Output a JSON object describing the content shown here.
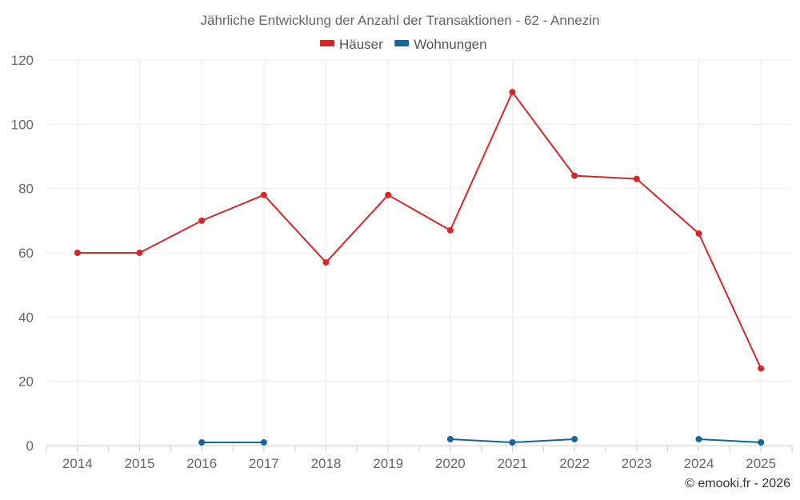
{
  "title": "Jährliche Entwicklung der Anzahl der Transaktionen - 62 - Annezin",
  "credit": "© emooki.fr - 2026",
  "chart_data": {
    "type": "line",
    "title": "Jährliche Entwicklung der Anzahl der Transaktionen - 62 - Annezin",
    "xlabel": "",
    "ylabel": "",
    "categories": [
      "2014",
      "2015",
      "2016",
      "2017",
      "2018",
      "2019",
      "2020",
      "2021",
      "2022",
      "2023",
      "2024",
      "2025"
    ],
    "ylim": [
      0,
      120
    ],
    "yticks": [
      0,
      20,
      40,
      60,
      80,
      100,
      120
    ],
    "grid": true,
    "legend_position": "top-center",
    "series": [
      {
        "name": "Häuser",
        "color": "#d62728",
        "values": [
          60,
          60,
          70,
          78,
          57,
          78,
          67,
          110,
          84,
          83,
          66,
          24
        ]
      },
      {
        "name": "Wohnungen",
        "color": "#1464a0",
        "values": [
          null,
          null,
          1,
          1,
          null,
          null,
          2,
          1,
          2,
          null,
          2,
          1
        ]
      }
    ]
  }
}
